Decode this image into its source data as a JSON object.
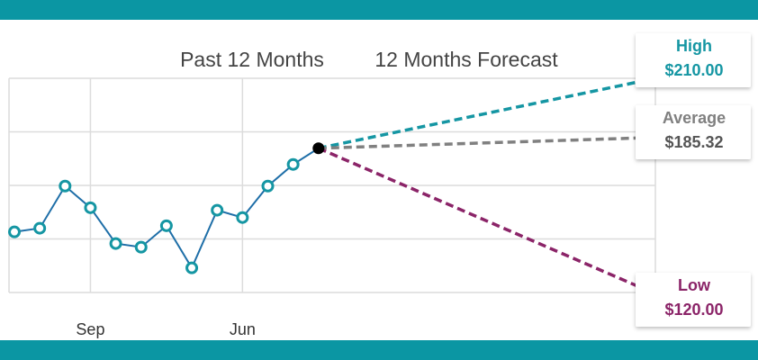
{
  "chart_data": {
    "type": "line",
    "period_labels": [
      "Past 12 Months",
      "12 Months Forecast"
    ],
    "categories": [
      null,
      null,
      null,
      "Sep",
      null,
      null,
      null,
      null,
      null,
      "Jun",
      null,
      null,
      null
    ],
    "series": [
      {
        "color": "#1f6fa8",
        "marker_color": "#1596a3",
        "values": [
          144.1,
          145.7,
          164.2,
          154.7,
          139.0,
          137.4,
          146.8,
          128.3,
          153.6,
          150.4,
          164.2,
          173.7,
          180.8
        ]
      }
    ],
    "forecast": [
      {
        "name": "High",
        "value": 210,
        "value_label": "$210.00",
        "color": "#1596a3"
      },
      {
        "name": "Average",
        "value": 185.32,
        "value_label": "$185.32",
        "color": "#808080"
      },
      {
        "name": "Low",
        "value": 120,
        "value_label": "$120.00",
        "color": "#8b2468"
      }
    ],
    "ylim": [
      117.5,
      211.5
    ],
    "yticks": [
      117.5,
      141,
      164.5,
      188,
      211.5
    ],
    "grid": true
  }
}
